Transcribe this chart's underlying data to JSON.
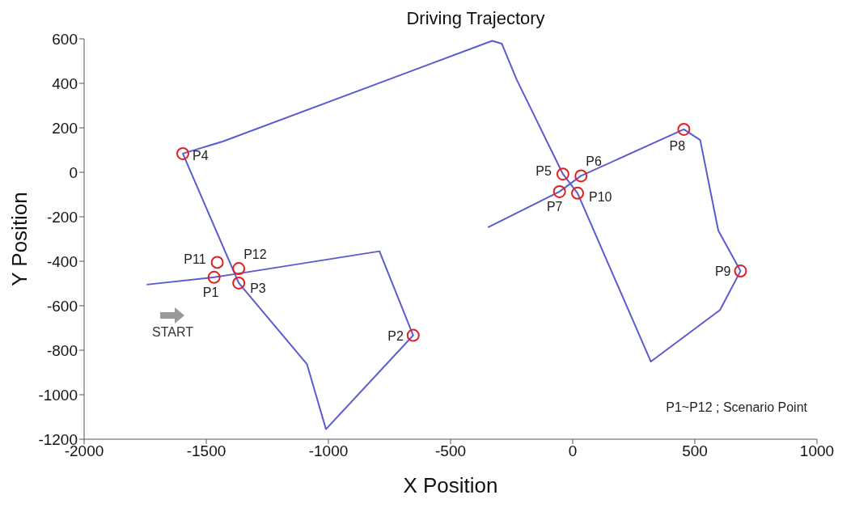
{
  "chart_data": {
    "type": "line",
    "title": "Driving Trajectory",
    "xlabel": "X Position",
    "ylabel": "Y Position",
    "xlim": [
      -2000,
      1000
    ],
    "xticks": [
      -2000,
      -1500,
      -1000,
      -500,
      0,
      500,
      1000
    ],
    "ylim": [
      -1200,
      600
    ],
    "yticks": [
      -1200,
      -1000,
      -800,
      -600,
      -400,
      -200,
      0,
      200,
      400,
      600
    ],
    "grid": false,
    "legend": false,
    "series": [
      {
        "color": "#5b5bd0",
        "line_style": "solid",
        "marker": "none",
        "x": [
          -1744,
          -1468,
          -1367,
          -791,
          -653,
          -1010,
          -1088,
          -1367,
          -1596,
          -1431,
          -330,
          -290,
          -229,
          -40,
          20,
          320,
          603,
          687,
          596,
          522,
          455,
          34,
          -54,
          -347
        ],
        "values": [
          -505,
          -472,
          -455,
          -355,
          -733,
          -1155,
          -862,
          -498,
          84,
          139,
          591,
          578,
          416,
          -8,
          -94,
          -851,
          -619,
          -444,
          -262,
          145,
          193,
          -16,
          -87,
          -248
        ]
      },
      {
        "type": "scatter",
        "color": "#e02020",
        "marker": "circle",
        "x": [
          -1468,
          -653,
          -1367,
          -1596,
          -40,
          34,
          -54,
          455,
          687,
          20,
          -1455,
          -1367
        ],
        "values": [
          -472,
          -733,
          -498,
          84,
          -8,
          -16,
          -87,
          193,
          -444,
          -94,
          -405,
          -433
        ],
        "value_labels": [
          "P1",
          "P2",
          "P3",
          "P4",
          "P5",
          "P6",
          "P7",
          "P8",
          "P9",
          "P10",
          "P11",
          "P12"
        ]
      }
    ],
    "annotations": [
      "START",
      "P1~P12 ; Scenario Point"
    ]
  }
}
